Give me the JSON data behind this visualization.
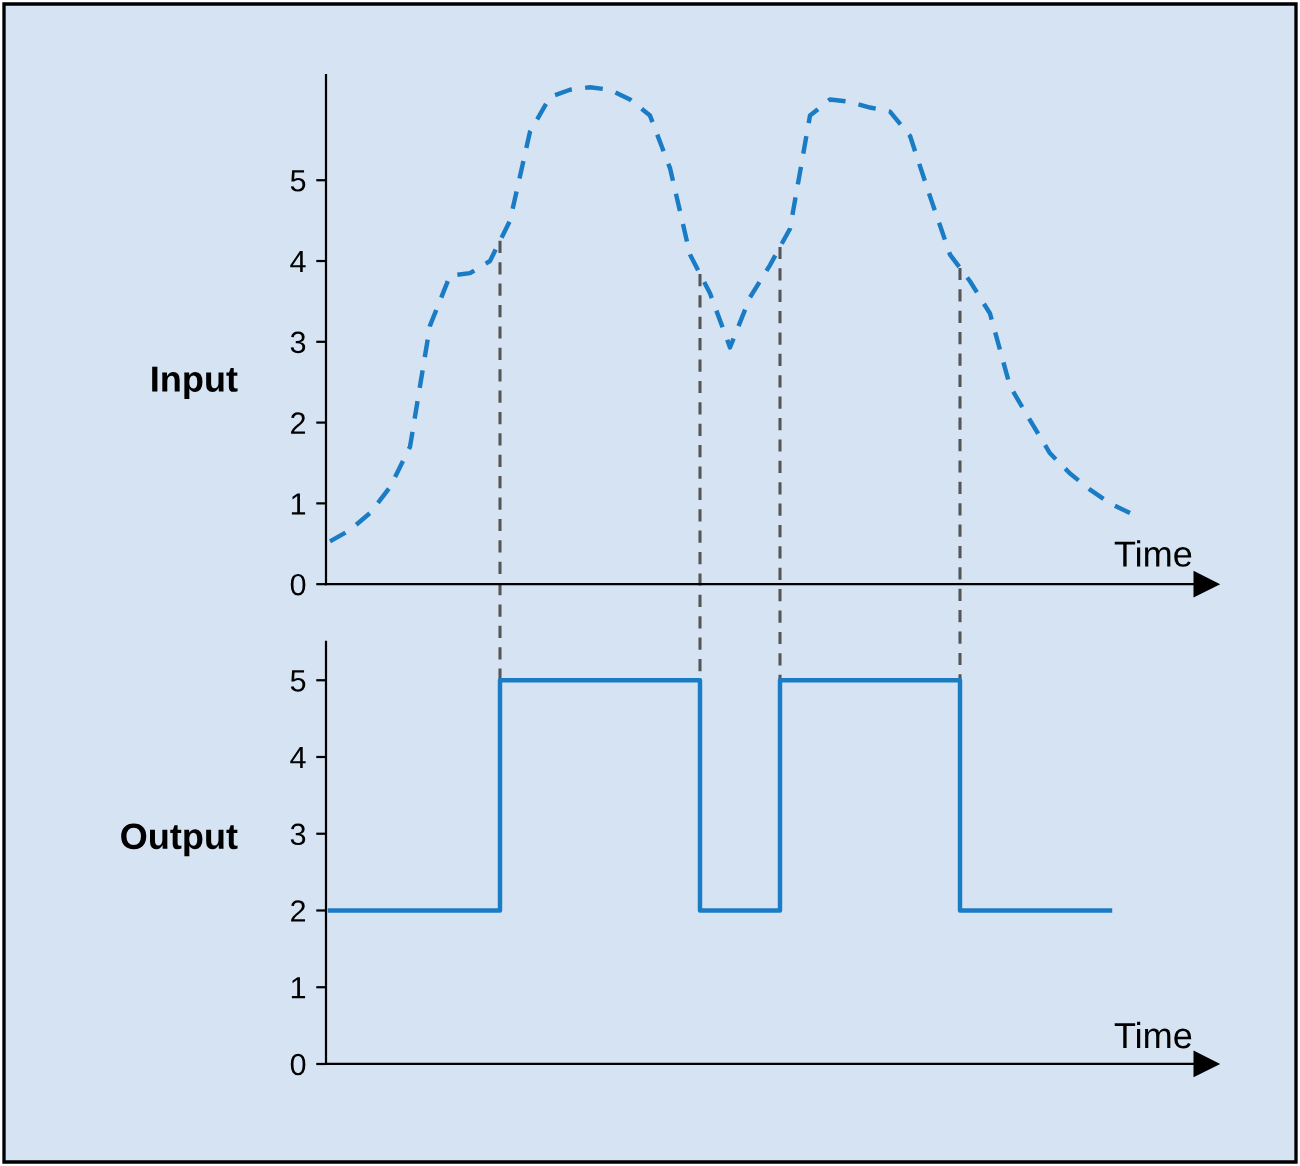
{
  "chart_data": [
    {
      "type": "line",
      "ylabel": "Input",
      "xlabel": "Time",
      "categories": [
        null,
        null,
        null,
        null,
        null,
        null,
        null,
        null,
        null,
        null,
        null,
        null,
        null,
        null,
        null,
        null,
        null,
        null,
        null,
        null,
        null,
        null,
        null,
        null,
        null,
        null,
        null,
        null,
        null,
        null,
        null,
        null,
        null,
        null,
        null,
        null,
        null,
        null,
        null,
        null,
        null
      ],
      "series": [
        {
          "color": "#1a7cc4",
          "line_style": "dashed",
          "values": [
            0.53,
            0.67,
            0.88,
            1.2,
            1.7,
            3.2,
            3.82,
            3.85,
            4.0,
            4.5,
            5.6,
            6.03,
            6.12,
            6.15,
            6.12,
            6.0,
            5.8,
            5.15,
            4.08,
            3.6,
            2.93,
            3.55,
            3.95,
            4.4,
            5.8,
            6.0,
            5.97,
            5.9,
            5.85,
            5.55,
            4.8,
            4.08,
            3.75,
            3.35,
            2.45,
            2.03,
            1.62,
            1.37,
            1.17,
            1.0,
            0.88
          ]
        }
      ],
      "ylim": [
        0,
        6.3
      ],
      "yticks": [
        0,
        1,
        2,
        3,
        4,
        5
      ],
      "grid": false,
      "marker": "none"
    },
    {
      "type": "step",
      "ylabel": "Output",
      "xlabel": "Time",
      "categories": [
        null,
        null,
        null,
        null,
        null,
        null,
        null,
        null,
        null,
        null,
        null,
        null,
        null,
        null,
        null,
        null,
        null,
        null,
        null,
        null,
        null,
        null,
        null,
        null,
        null,
        null,
        null,
        null,
        null,
        null,
        null,
        null,
        null,
        null,
        null,
        null,
        null,
        null,
        null,
        null
      ],
      "series": [
        {
          "color": "#1a7cc4",
          "line_style": "solid",
          "values": [
            2,
            2,
            2,
            2,
            2,
            2,
            2,
            2,
            2,
            5,
            5,
            5,
            5,
            5,
            5,
            5,
            5,
            5,
            5,
            2,
            2,
            2,
            2,
            5,
            5,
            5,
            5,
            5,
            5,
            5,
            5,
            5,
            2,
            2,
            2,
            2,
            2,
            2,
            2,
            2
          ]
        }
      ],
      "ylim": [
        0,
        5.5
      ],
      "yticks": [
        0,
        1,
        2,
        3,
        4,
        5
      ],
      "grid": false,
      "marker": "none"
    }
  ]
}
